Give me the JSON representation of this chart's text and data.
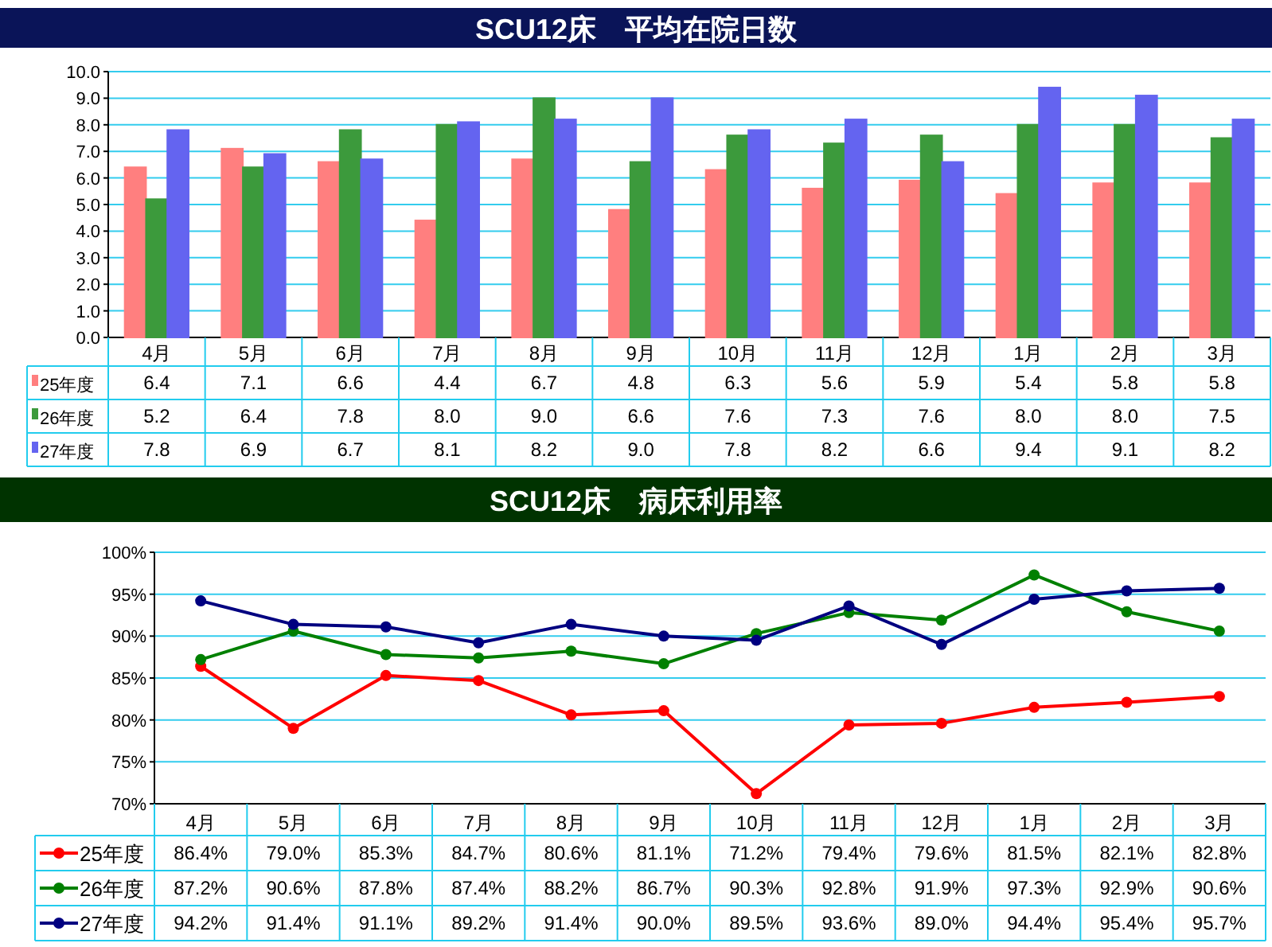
{
  "chart_data": [
    {
      "type": "bar",
      "title": "SCU12床　平均在院日数",
      "categories": [
        "4月",
        "5月",
        "6月",
        "7月",
        "8月",
        "9月",
        "10月",
        "11月",
        "12月",
        "1月",
        "2月",
        "3月"
      ],
      "series": [
        {
          "name": "25年度",
          "color": "#ff7f7f",
          "values": [
            6.4,
            7.1,
            6.6,
            4.4,
            6.7,
            4.8,
            6.3,
            5.6,
            5.9,
            5.4,
            5.8,
            5.8
          ],
          "value_labels": [
            "6.4",
            "7.1",
            "6.6",
            "4.4",
            "6.7",
            "4.8",
            "6.3",
            "5.6",
            "5.9",
            "5.4",
            "5.8",
            "5.8"
          ]
        },
        {
          "name": "26年度",
          "color": "#3c9a3c",
          "values": [
            5.2,
            6.4,
            7.8,
            8.0,
            9.0,
            6.6,
            7.6,
            7.3,
            7.6,
            8.0,
            8.0,
            7.5
          ],
          "value_labels": [
            "5.2",
            "6.4",
            "7.8",
            "8.0",
            "9.0",
            "6.6",
            "7.6",
            "7.3",
            "7.6",
            "8.0",
            "8.0",
            "7.5"
          ]
        },
        {
          "name": "27年度",
          "color": "#6464f0",
          "values": [
            7.8,
            6.9,
            6.7,
            8.1,
            8.2,
            9.0,
            7.8,
            8.2,
            6.6,
            9.4,
            9.1,
            8.2
          ],
          "value_labels": [
            "7.8",
            "6.9",
            "6.7",
            "8.1",
            "8.2",
            "9.0",
            "7.8",
            "8.2",
            "6.6",
            "9.4",
            "9.1",
            "8.2"
          ]
        }
      ],
      "ylim": [
        0,
        10
      ],
      "yticks": [
        {
          "value": 0,
          "label": "0.0"
        },
        {
          "value": 1,
          "label": "1.0"
        },
        {
          "value": 2,
          "label": "2.0"
        },
        {
          "value": 3,
          "label": "3.0"
        },
        {
          "value": 4,
          "label": "4.0"
        },
        {
          "value": 5,
          "label": "5.0"
        },
        {
          "value": 6,
          "label": "6.0"
        },
        {
          "value": 7,
          "label": "7.0"
        },
        {
          "value": 8,
          "label": "8.0"
        },
        {
          "value": 9,
          "label": "9.0"
        },
        {
          "value": 10,
          "label": "10.0"
        }
      ],
      "grid": "y",
      "legend": "bottom"
    },
    {
      "type": "line",
      "title": "SCU12床　病床利用率",
      "categories": [
        "4月",
        "5月",
        "6月",
        "7月",
        "8月",
        "9月",
        "10月",
        "11月",
        "12月",
        "1月",
        "2月",
        "3月"
      ],
      "series": [
        {
          "name": "25年度",
          "color": "#ff0000",
          "values": [
            86.4,
            79.0,
            85.3,
            84.7,
            80.6,
            81.1,
            71.2,
            79.4,
            79.6,
            81.5,
            82.1,
            82.8
          ],
          "value_labels": [
            "86.4%",
            "79.0%",
            "85.3%",
            "84.7%",
            "80.6%",
            "81.1%",
            "71.2%",
            "79.4%",
            "79.6%",
            "81.5%",
            "82.1%",
            "82.8%"
          ]
        },
        {
          "name": "26年度",
          "color": "#008000",
          "values": [
            87.2,
            90.6,
            87.8,
            87.4,
            88.2,
            86.7,
            90.3,
            92.8,
            91.9,
            97.3,
            92.9,
            90.6
          ],
          "value_labels": [
            "87.2%",
            "90.6%",
            "87.8%",
            "87.4%",
            "88.2%",
            "86.7%",
            "90.3%",
            "92.8%",
            "91.9%",
            "97.3%",
            "92.9%",
            "90.6%"
          ]
        },
        {
          "name": "27年度",
          "color": "#000080",
          "values": [
            94.2,
            91.4,
            91.1,
            89.2,
            91.4,
            90.0,
            89.5,
            93.6,
            89.0,
            94.4,
            95.4,
            95.7
          ],
          "value_labels": [
            "94.2%",
            "91.4%",
            "91.1%",
            "89.2%",
            "91.4%",
            "90.0%",
            "89.5%",
            "93.6%",
            "89.0%",
            "94.4%",
            "95.4%",
            "95.7%"
          ]
        }
      ],
      "ylim": [
        70,
        100
      ],
      "yticks": [
        {
          "value": 70,
          "label": "70%"
        },
        {
          "value": 75,
          "label": "75%"
        },
        {
          "value": 80,
          "label": "80%"
        },
        {
          "value": 85,
          "label": "85%"
        },
        {
          "value": 90,
          "label": "90%"
        },
        {
          "value": 95,
          "label": "95%"
        },
        {
          "value": 100,
          "label": "100%"
        }
      ],
      "grid": "y",
      "legend": "bottom",
      "marker": "circle",
      "line_style": "solid"
    }
  ]
}
